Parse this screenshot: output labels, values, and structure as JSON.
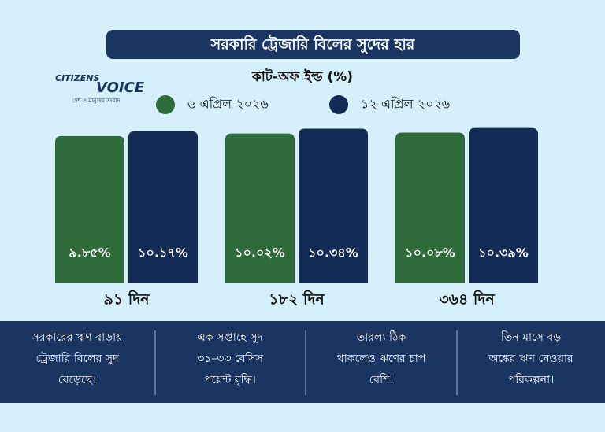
{
  "chart_data": {
    "type": "bar",
    "title": "সরকারি ট্রেজারি বিলের সুদের হার",
    "subtitle": "কাট-অফ ইল্ড (%)",
    "categories": [
      "৯১ দিন",
      "১৮২ দিন",
      "৩৬৪ দিন"
    ],
    "series": [
      {
        "name": "৬ এপ্রিল ২০২৬",
        "color": "#2f6b3b",
        "values": [
          9.85,
          10.02,
          10.08
        ],
        "value_labels": [
          "৯.৮৫%",
          "১০.০২%",
          "১০.০৮%"
        ]
      },
      {
        "name": "১২ এপ্রিল ২০২৬",
        "color": "#142b55",
        "values": [
          10.17,
          10.34,
          10.39
        ],
        "value_labels": [
          "১০.১৭%",
          "১০.৩৪%",
          "১০.৩৯%"
        ]
      }
    ]
  },
  "logo": {
    "name_top": "CITIZENS",
    "name_bottom": "VOICE",
    "tagline": "দেশ ও মানুষের সংবাদ"
  },
  "notes": [
    [
      "সরকারের ঋণ বাড়ায়",
      "ট্রেজারি বিলের সুদ",
      "বেড়েছে।"
    ],
    [
      "এক সপ্তাহে সুদ",
      "৩১–৩৩ বেসিস",
      "পয়েন্ট বৃদ্ধি।"
    ],
    [
      "তারল্য ঠিক",
      "থাকলেও ঋণের চাপ",
      "বেশি।"
    ],
    [
      "তিন মাসে বড়",
      "অঙ্কের ঋণ নেওয়ার",
      "পরিকল্পনা।"
    ]
  ]
}
